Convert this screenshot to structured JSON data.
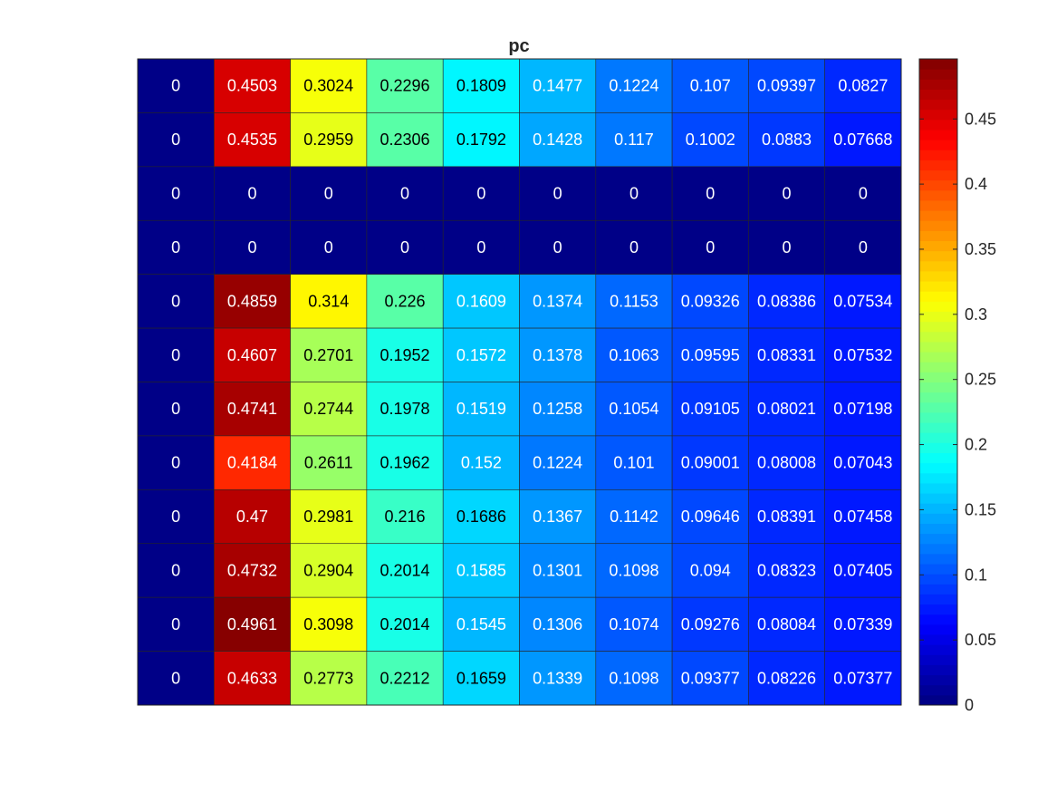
{
  "chart_data": {
    "type": "heatmap",
    "title": "pc",
    "colormap": "jet",
    "clim": [
      0,
      0.4961
    ],
    "colorbar": {
      "position": "right",
      "ticks": [
        0,
        0.05,
        0.1,
        0.15,
        0.2,
        0.25,
        0.3,
        0.35,
        0.4,
        0.45
      ],
      "tick_labels": [
        "0",
        "0.05",
        "0.1",
        "0.15",
        "0.2",
        "0.25",
        "0.3",
        "0.35",
        "0.4",
        "0.45"
      ]
    },
    "rows": 12,
    "cols": 10,
    "values": [
      [
        0,
        0.4503,
        0.3024,
        0.2296,
        0.1809,
        0.1477,
        0.1224,
        0.107,
        0.09397,
        0.0827
      ],
      [
        0,
        0.4535,
        0.2959,
        0.2306,
        0.1792,
        0.1428,
        0.117,
        0.1002,
        0.0883,
        0.07668
      ],
      [
        0,
        0,
        0,
        0,
        0,
        0,
        0,
        0,
        0,
        0
      ],
      [
        0,
        0,
        0,
        0,
        0,
        0,
        0,
        0,
        0,
        0
      ],
      [
        0,
        0.4859,
        0.314,
        0.226,
        0.1609,
        0.1374,
        0.1153,
        0.09326,
        0.08386,
        0.07534
      ],
      [
        0,
        0.4607,
        0.2701,
        0.1952,
        0.1572,
        0.1378,
        0.1063,
        0.09595,
        0.08331,
        0.07532
      ],
      [
        0,
        0.4741,
        0.2744,
        0.1978,
        0.1519,
        0.1258,
        0.1054,
        0.09105,
        0.08021,
        0.07198
      ],
      [
        0,
        0.4184,
        0.2611,
        0.1962,
        0.152,
        0.1224,
        0.101,
        0.09001,
        0.08008,
        0.07043
      ],
      [
        0,
        0.47,
        0.2981,
        0.216,
        0.1686,
        0.1367,
        0.1142,
        0.09646,
        0.08391,
        0.07458
      ],
      [
        0,
        0.4732,
        0.2904,
        0.2014,
        0.1585,
        0.1301,
        0.1098,
        0.094,
        0.08323,
        0.07405
      ],
      [
        0,
        0.4961,
        0.3098,
        0.2014,
        0.1545,
        0.1306,
        0.1074,
        0.09276,
        0.08084,
        0.07339
      ],
      [
        0,
        0.4633,
        0.2773,
        0.2212,
        0.1659,
        0.1339,
        0.1098,
        0.09377,
        0.08226,
        0.07377
      ]
    ],
    "labels": [
      [
        "0",
        "0.4503",
        "0.3024",
        "0.2296",
        "0.1809",
        "0.1477",
        "0.1224",
        "0.107",
        "0.09397",
        "0.0827"
      ],
      [
        "0",
        "0.4535",
        "0.2959",
        "0.2306",
        "0.1792",
        "0.1428",
        "0.117",
        "0.1002",
        "0.0883",
        "0.07668"
      ],
      [
        "0",
        "0",
        "0",
        "0",
        "0",
        "0",
        "0",
        "0",
        "0",
        "0"
      ],
      [
        "0",
        "0",
        "0",
        "0",
        "0",
        "0",
        "0",
        "0",
        "0",
        "0"
      ],
      [
        "0",
        "0.4859",
        "0.314",
        "0.226",
        "0.1609",
        "0.1374",
        "0.1153",
        "0.09326",
        "0.08386",
        "0.07534"
      ],
      [
        "0",
        "0.4607",
        "0.2701",
        "0.1952",
        "0.1572",
        "0.1378",
        "0.1063",
        "0.09595",
        "0.08331",
        "0.07532"
      ],
      [
        "0",
        "0.4741",
        "0.2744",
        "0.1978",
        "0.1519",
        "0.1258",
        "0.1054",
        "0.09105",
        "0.08021",
        "0.07198"
      ],
      [
        "0",
        "0.4184",
        "0.2611",
        "0.1962",
        "0.152",
        "0.1224",
        "0.101",
        "0.09001",
        "0.08008",
        "0.07043"
      ],
      [
        "0",
        "0.47",
        "0.2981",
        "0.216",
        "0.1686",
        "0.1367",
        "0.1142",
        "0.09646",
        "0.08391",
        "0.07458"
      ],
      [
        "0",
        "0.4732",
        "0.2904",
        "0.2014",
        "0.1585",
        "0.1301",
        "0.1098",
        "0.094",
        "0.08323",
        "0.07405"
      ],
      [
        "0",
        "0.4961",
        "0.3098",
        "0.2014",
        "0.1545",
        "0.1306",
        "0.1074",
        "0.09276",
        "0.08084",
        "0.07339"
      ],
      [
        "0",
        "0.4633",
        "0.2773",
        "0.2212",
        "0.1659",
        "0.1339",
        "0.1098",
        "0.09377",
        "0.08226",
        "0.07377"
      ]
    ]
  }
}
